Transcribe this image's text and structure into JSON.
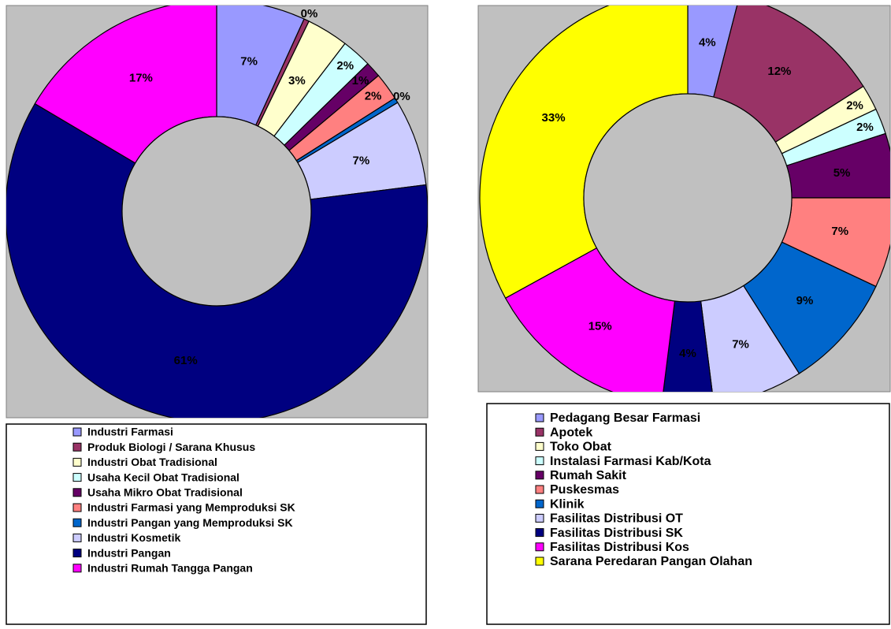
{
  "chart_data": [
    {
      "type": "donut",
      "categories": [
        "Industri Farmasi",
        "Produk Biologi / Sarana Khusus",
        "Industri Obat Tradisional",
        "Usaha Kecil Obat Tradisional",
        "Usaha Mikro Obat Tradisional",
        "Industri Farmasi yang Memproduksi SK",
        "Industri Pangan yang Memproduksi SK",
        "Industri Kosmetik",
        "Industri Pangan",
        "Industri Rumah Tangga Pangan"
      ],
      "values": [
        6.8,
        0.4,
        3.2,
        2.3,
        1.2,
        2.1,
        0.4,
        6.6,
        60.5,
        16.5
      ],
      "value_labels": [
        "7%",
        "0%",
        "3%",
        "2%",
        "1%",
        "2%",
        "0%",
        "7%",
        "61%",
        "17%"
      ],
      "colors": [
        "#9999ff",
        "#993366",
        "#ffffcc",
        "#ccffff",
        "#660066",
        "#ff8080",
        "#0066cc",
        "#ccccff",
        "#000080",
        "#ff00ff"
      ]
    },
    {
      "type": "donut",
      "categories": [
        "Pedagang Besar Farmasi",
        "Apotek",
        "Toko Obat",
        "Instalasi Farmasi Kab/Kota",
        "Rumah Sakit",
        "Puskesmas",
        "Klinik",
        "Fasilitas Distribusi OT",
        "Fasilitas Distribusi SK",
        "Fasilitas Distribusi Kos",
        "Sarana Peredaran Pangan Olahan"
      ],
      "values": [
        4,
        12,
        2,
        2,
        5,
        7,
        9,
        7,
        4,
        15,
        33
      ],
      "value_labels": [
        "4%",
        "12%",
        "2%",
        "2%",
        "5%",
        "7%",
        "9%",
        "7%",
        "4%",
        "15%",
        "33%"
      ],
      "colors": [
        "#9999ff",
        "#993366",
        "#ffffcc",
        "#ccffff",
        "#660066",
        "#ff8080",
        "#0066cc",
        "#ccccff",
        "#000080",
        "#ff00ff",
        "#ffff00"
      ]
    }
  ]
}
